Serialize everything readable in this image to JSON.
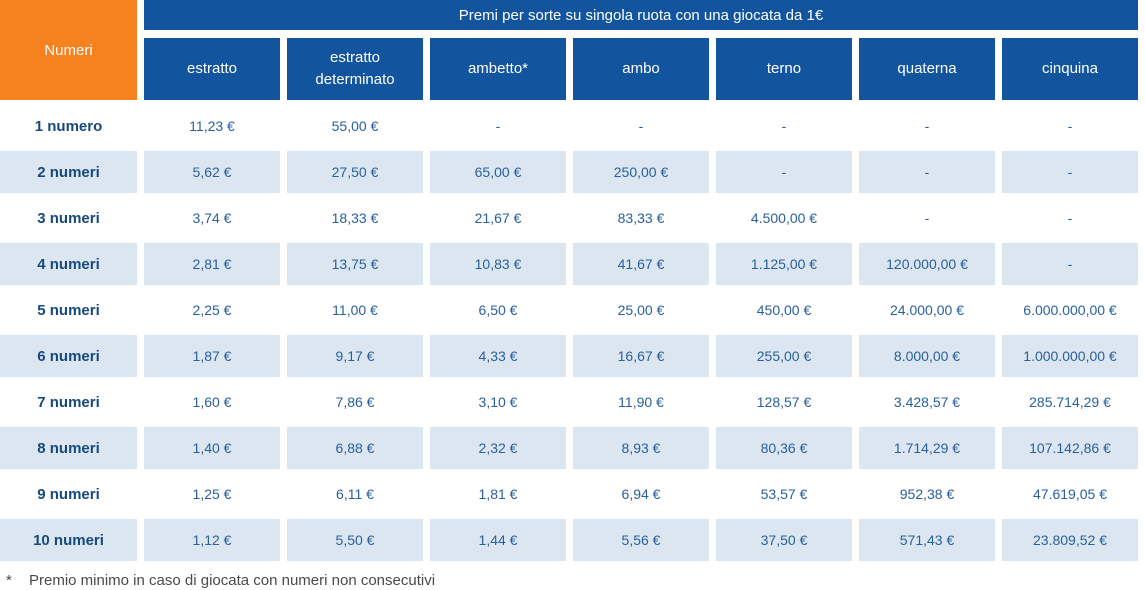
{
  "colors": {
    "orange": "#F6821F",
    "header_blue": "#12549E",
    "row_light_blue": "#DCE6F0",
    "label_text": "#17497E",
    "value_text": "#2A609E",
    "footnote_text": "#4A4A4A"
  },
  "table": {
    "banner_title": "Premi per sorte su singola ruota con una giocata da 1€",
    "corner_label": "Numeri",
    "columns": [
      "estratto",
      "estratto determinato",
      "ambetto*",
      "ambo",
      "terno",
      "quaterna",
      "cinquina"
    ],
    "rows": [
      {
        "label": "1 numero",
        "values": [
          "11,23 €",
          "55,00 €",
          "-",
          "-",
          "-",
          "-",
          "-"
        ]
      },
      {
        "label": "2 numeri",
        "values": [
          "5,62 €",
          "27,50 €",
          "65,00 €",
          "250,00 €",
          "-",
          "-",
          "-"
        ]
      },
      {
        "label": "3 numeri",
        "values": [
          "3,74 €",
          "18,33 €",
          "21,67 €",
          "83,33 €",
          "4.500,00 €",
          "-",
          "-"
        ]
      },
      {
        "label": "4 numeri",
        "values": [
          "2,81 €",
          "13,75 €",
          "10,83 €",
          "41,67 €",
          "1.125,00 €",
          "120.000,00 €",
          "-"
        ]
      },
      {
        "label": "5 numeri",
        "values": [
          "2,25 €",
          "11,00 €",
          "6,50 €",
          "25,00 €",
          "450,00 €",
          "24.000,00 €",
          "6.000.000,00 €"
        ]
      },
      {
        "label": "6 numeri",
        "values": [
          "1,87 €",
          "9,17 €",
          "4,33 €",
          "16,67 €",
          "255,00 €",
          "8.000,00 €",
          "1.000.000,00 €"
        ]
      },
      {
        "label": "7 numeri",
        "values": [
          "1,60 €",
          "7,86 €",
          "3,10 €",
          "11,90 €",
          "128,57 €",
          "3.428,57 €",
          "285.714,29 €"
        ]
      },
      {
        "label": "8 numeri",
        "values": [
          "1,40 €",
          "6,88 €",
          "2,32 €",
          "8,93 €",
          "80,36 €",
          "1.714,29 €",
          "107.142,86 €"
        ]
      },
      {
        "label": "9 numeri",
        "values": [
          "1,25 €",
          "6,11 €",
          "1,81 €",
          "6,94 €",
          "53,57 €",
          "952,38 €",
          "47.619,05 €"
        ]
      },
      {
        "label": "10 numeri",
        "values": [
          "1,12 €",
          "5,50 €",
          "1,44 €",
          "5,56 €",
          "37,50 €",
          "571,43 €",
          "23.809,52 €"
        ]
      }
    ],
    "footnote_marker": "*",
    "footnote_text": "Premio minimo in caso di giocata con numeri non consecutivi"
  }
}
